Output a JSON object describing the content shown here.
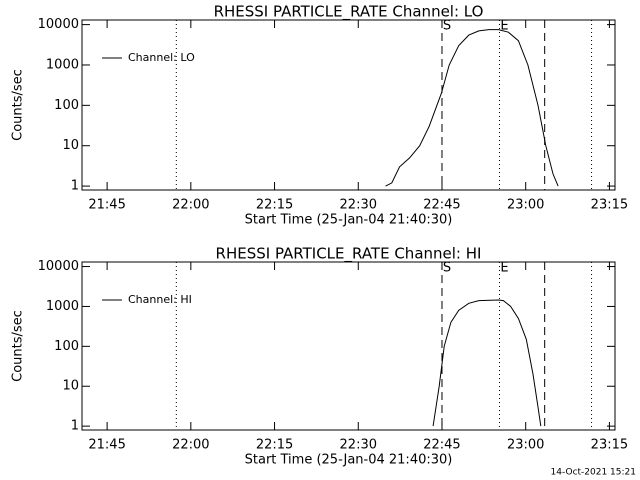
{
  "chart_data": [
    {
      "type": "line",
      "title": "RHESSI PARTICLE_RATE Channel: LO",
      "xlabel": "Start Time (25-Jan-04 21:40:30)",
      "ylabel": "Counts/sec",
      "log_scale": true,
      "legend": "upper left",
      "grid": false,
      "xlim": [
        1300.5,
        1396
      ],
      "ylim": [
        0.8,
        13000
      ],
      "xticks": [
        {
          "value": 1305,
          "label": "21:45"
        },
        {
          "value": 1320,
          "label": "22:00"
        },
        {
          "value": 1335,
          "label": "22:15"
        },
        {
          "value": 1350,
          "label": "22:30"
        },
        {
          "value": 1365,
          "label": "22:45"
        },
        {
          "value": 1380,
          "label": "23:00"
        },
        {
          "value": 1395,
          "label": "23:15"
        }
      ],
      "yticks": [
        1,
        10,
        100,
        1000,
        10000
      ],
      "vlines": [
        {
          "x": 1317.4,
          "style": "dotted"
        },
        {
          "x": 1365,
          "style": "dashed",
          "label": "S"
        },
        {
          "x": 1375.3,
          "style": "dotted",
          "label": "E"
        },
        {
          "x": 1383.4,
          "style": "dashed"
        },
        {
          "x": 1391.8,
          "style": "dotted"
        }
      ],
      "x": [
        1354.9,
        1356.0,
        1357.4,
        1359.2,
        1361.0,
        1362.7,
        1364.9,
        1366.3,
        1368.0,
        1369.8,
        1371.6,
        1373.4,
        1375.1,
        1376.9,
        1378.7,
        1380.4,
        1382.2,
        1383.6,
        1384.9,
        1385.8
      ],
      "series": [
        {
          "name": "Channel: LO",
          "color": "#000000",
          "values": [
            1,
            1.2,
            3,
            5,
            10,
            30,
            200,
            1000,
            3000,
            5500,
            7000,
            7500,
            7500,
            6500,
            4000,
            1000,
            100,
            10,
            2,
            1
          ]
        }
      ]
    },
    {
      "type": "line",
      "title": "RHESSI PARTICLE_RATE Channel: HI",
      "xlabel": "Start Time (25-Jan-04 21:40:30)",
      "ylabel": "Counts/sec",
      "log_scale": true,
      "legend": "upper left",
      "grid": false,
      "xlim": [
        1300.5,
        1396
      ],
      "ylim": [
        0.8,
        13000
      ],
      "xticks": [
        {
          "value": 1305,
          "label": "21:45"
        },
        {
          "value": 1320,
          "label": "22:00"
        },
        {
          "value": 1335,
          "label": "22:15"
        },
        {
          "value": 1350,
          "label": "22:30"
        },
        {
          "value": 1365,
          "label": "22:45"
        },
        {
          "value": 1380,
          "label": "23:00"
        },
        {
          "value": 1395,
          "label": "23:15"
        }
      ],
      "yticks": [
        1,
        10,
        100,
        1000,
        10000
      ],
      "vlines": [
        {
          "x": 1317.4,
          "style": "dotted"
        },
        {
          "x": 1365,
          "style": "dashed",
          "label": "S"
        },
        {
          "x": 1375.3,
          "style": "dotted",
          "label": "E"
        },
        {
          "x": 1383.4,
          "style": "dashed"
        },
        {
          "x": 1391.8,
          "style": "dotted"
        }
      ],
      "x": [
        1363.4,
        1364.5,
        1365.4,
        1366.6,
        1368.0,
        1369.8,
        1371.6,
        1375.1,
        1376.0,
        1377.3,
        1378.7,
        1380.1,
        1381.3,
        1382.2,
        1382.7
      ],
      "series": [
        {
          "name": "Channel: HI",
          "color": "#000000",
          "values": [
            1,
            10,
            100,
            400,
            800,
            1200,
            1400,
            1450,
            1400,
            1000,
            500,
            150,
            20,
            3,
            1
          ]
        }
      ]
    }
  ],
  "footer": "14-Oct-2021 15:21"
}
